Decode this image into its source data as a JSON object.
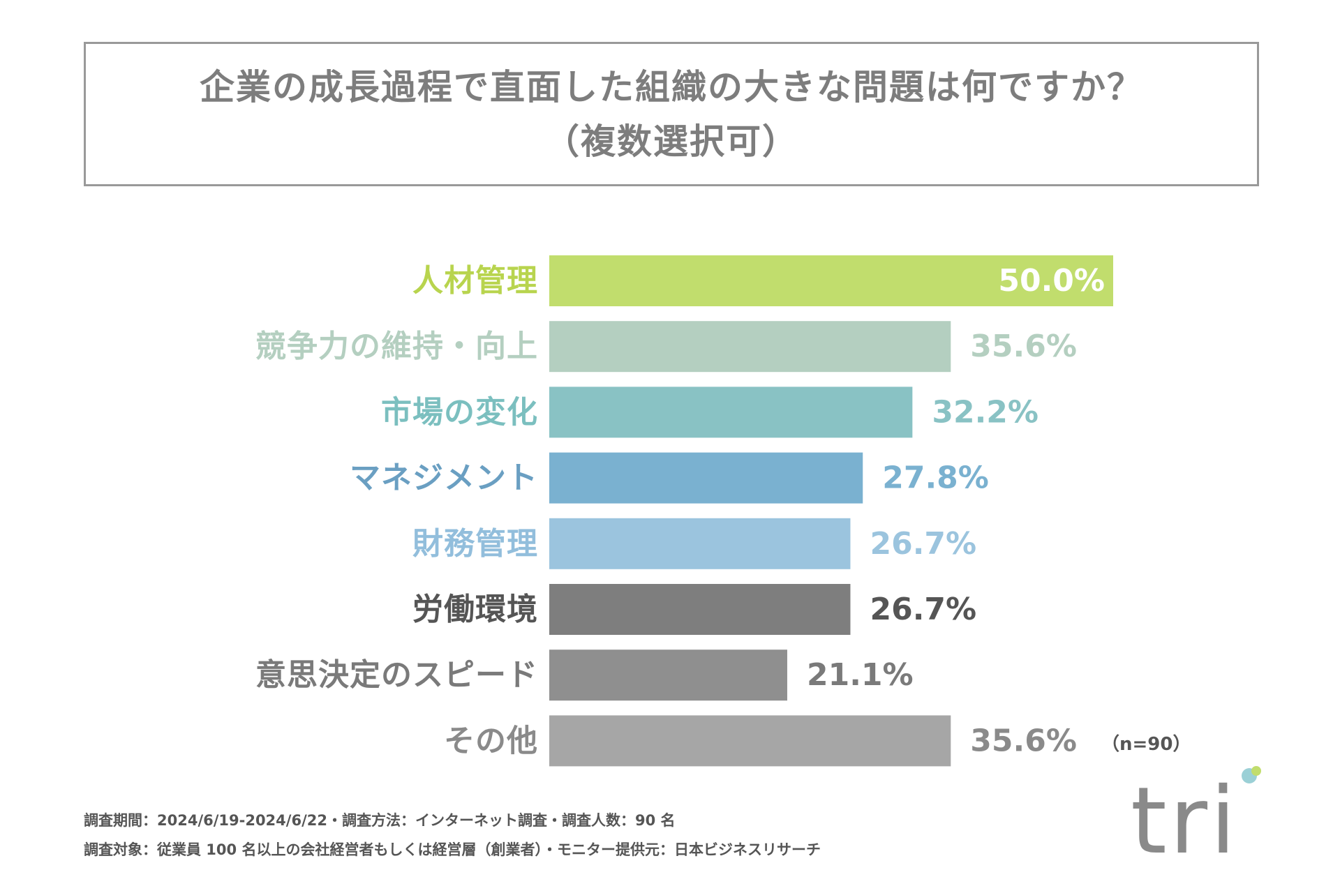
{
  "title": {
    "line1": "企業の成長過程で直面した組織の大きな問題は何ですか？",
    "line2": "（複数選択可）"
  },
  "colors": {
    "border": "#999999",
    "title_text": "#7d7d7d",
    "value_inside": "#ffffff"
  },
  "chart_data": {
    "type": "bar",
    "orientation": "horizontal",
    "title": "企業の成長過程で直面した組織の大きな問題は何ですか？（複数選択可）",
    "categories": [
      "人材管理",
      "競争力の維持・向上",
      "市場の変化",
      "マネジメント",
      "財務管理",
      "労働環境",
      "意思決定のスピード",
      "その他"
    ],
    "values": [
      50.0,
      35.6,
      32.2,
      27.8,
      26.7,
      26.7,
      21.1,
      35.6
    ],
    "value_labels": [
      "50.0%",
      "35.6%",
      "32.2%",
      "27.8%",
      "26.7%",
      "26.7%",
      "21.1%",
      "35.6%"
    ],
    "bar_colors": [
      "#c1dd6d",
      "#b4cfc0",
      "#89c2c4",
      "#7ab1d0",
      "#9bc4de",
      "#7e7e7e",
      "#8f8f8f",
      "#a6a6a6"
    ],
    "label_colors": [
      "#b8d44e",
      "#b4cfc0",
      "#7bbfbf",
      "#6a9fc2",
      "#92bedc",
      "#555555",
      "#7a7a7a",
      "#8a8a8a"
    ],
    "value_label_colors": [
      "#ffffff",
      "#b4cfc0",
      "#89c2c4",
      "#7ab1d0",
      "#9bc4de",
      "#555555",
      "#7a7a7a",
      "#8a8a8a"
    ],
    "xlim": [
      0,
      50
    ],
    "grid": false,
    "legend": "none"
  },
  "sample_note": "（n=90）",
  "footer": {
    "line1": "調査期間：2024/6/19-2024/6/22・調査方法：インターネット調査・調査人数：90 名",
    "line2": "調査対象：従業員 100 名以上の会社経営者もしくは経営層（創業者）・モニター提供元：日本ビジネスリサーチ"
  },
  "logo": {
    "text": "tri",
    "text_color": "#8a8a8a",
    "dot_colors": [
      "#9bd0d6",
      "#c1dd6d"
    ]
  }
}
